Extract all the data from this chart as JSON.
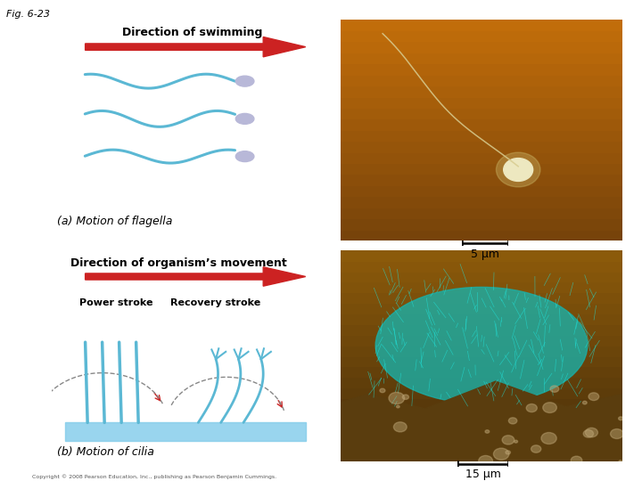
{
  "fig_label": "Fig. 6-23",
  "background_color": "#ffffff",
  "panel_bg": "#f5ecd0",
  "label_a": "(a) Motion of flagella",
  "label_b": "(b) Motion of cilia",
  "title_a": "Direction of swimming",
  "title_b": "Direction of organism’s movement",
  "subtitle_power": "Power stroke",
  "subtitle_recovery": "Recovery stroke",
  "scale_a": "5 μm",
  "scale_b": "15 μm",
  "copyright": "Copyright © 2008 Pearson Education, Inc., publishing as Pearson Benjamin Cummings.",
  "flagella_color": "#5bb8d4",
  "head_color": "#b8b8d8",
  "arrow_color": "#cc2222",
  "cilia_color": "#5bb8d4",
  "water_color": "#87ceeb"
}
